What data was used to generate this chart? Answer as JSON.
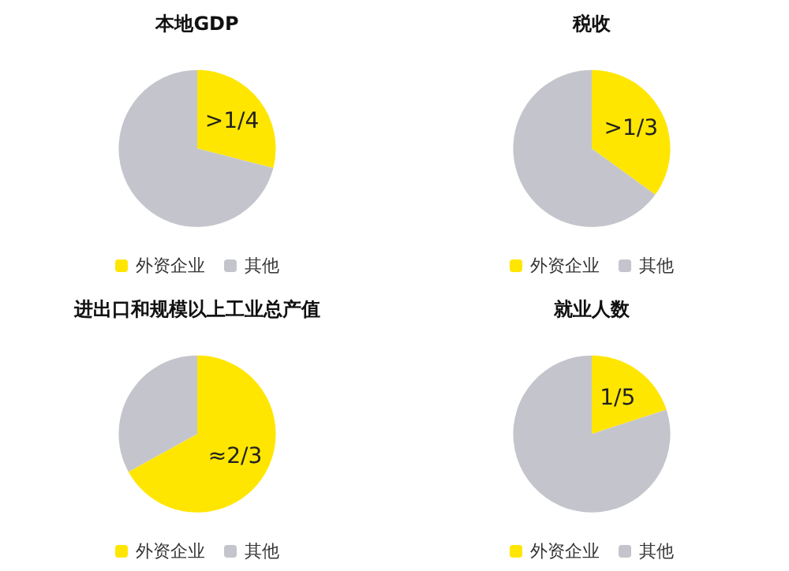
{
  "chart_data": [
    {
      "type": "pie",
      "title": "本地GDP",
      "categories": [
        "外资企业",
        "其他"
      ],
      "values": [
        0.29,
        0.71
      ],
      "colors": [
        "#ffe600",
        "#c4c5cc"
      ],
      "value_labels": [
        ">1/4",
        null
      ],
      "legend": "bottom"
    },
    {
      "type": "pie",
      "title": "税收",
      "categories": [
        "外资企业",
        "其他"
      ],
      "values": [
        0.35,
        0.65
      ],
      "colors": [
        "#ffe600",
        "#c4c5cc"
      ],
      "value_labels": [
        ">1/3",
        null
      ],
      "legend": "bottom"
    },
    {
      "type": "pie",
      "title": "进出口和规模以上工业总产值",
      "categories": [
        "外资企业",
        "其他"
      ],
      "values": [
        0.67,
        0.33
      ],
      "colors": [
        "#ffe600",
        "#c4c5cc"
      ],
      "value_labels": [
        "≈2/3",
        null
      ],
      "legend": "bottom"
    },
    {
      "type": "pie",
      "title": "就业人数",
      "categories": [
        "外资企业",
        "其他"
      ],
      "values": [
        0.2,
        0.8
      ],
      "colors": [
        "#ffe600",
        "#c4c5cc"
      ],
      "value_labels": [
        "1/5",
        null
      ],
      "legend": "bottom"
    }
  ]
}
